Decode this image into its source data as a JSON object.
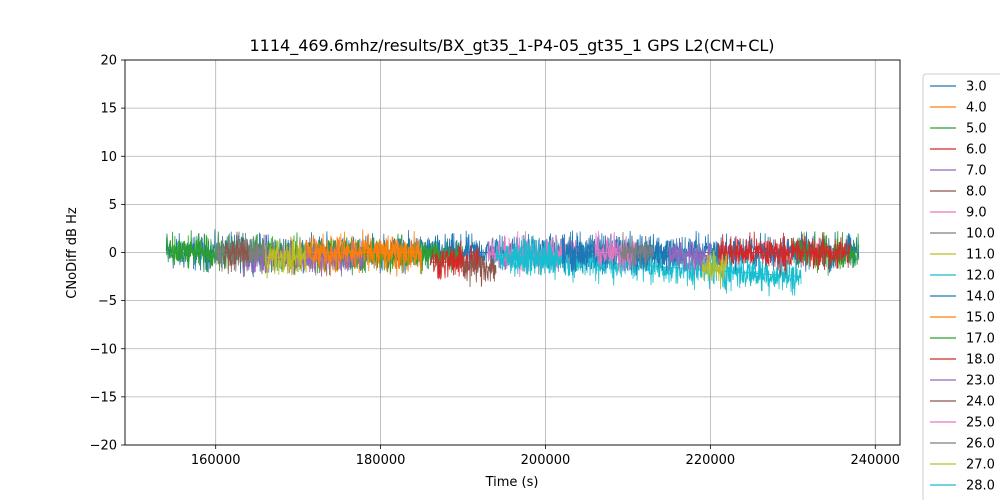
{
  "chart_data": {
    "type": "line",
    "title": "1114_469.6mhz/results/BX_gt35_1-P4-05_gt35_1 GPS L2(CM+CL)",
    "xlabel": "Time (s)",
    "ylabel": "CNoDiff dB Hz",
    "xlim": [
      149000,
      243000
    ],
    "ylim": [
      -20,
      20
    ],
    "xticks": [
      160000,
      180000,
      200000,
      220000,
      240000
    ],
    "yticks": [
      -20,
      -15,
      -10,
      -5,
      0,
      5,
      10,
      15,
      20
    ],
    "grid": true,
    "legend_position": "right",
    "series": [
      {
        "name": "3.0",
        "color": "#1f77b4",
        "x": [
          154000,
          238000
        ],
        "y": [
          0.0,
          0.0
        ]
      },
      {
        "name": "4.0",
        "color": "#ff7f0e",
        "x": [
          169000,
          185000
        ],
        "y": [
          -0.3,
          -0.3
        ]
      },
      {
        "name": "5.0",
        "color": "#2ca02c",
        "x": [
          154000,
          190000
        ],
        "y": [
          0.0,
          -0.3
        ]
      },
      {
        "name": "6.0",
        "color": "#d62728",
        "x": [
          186000,
          192000
        ],
        "y": [
          -1.0,
          -1.0
        ]
      },
      {
        "name": "7.0",
        "color": "#9467bd",
        "x": [
          163000,
          178000
        ],
        "y": [
          -0.5,
          -0.5
        ]
      },
      {
        "name": "8.0",
        "color": "#8c564b",
        "x": [
          190000,
          194000
        ],
        "y": [
          -1.5,
          -1.5
        ]
      },
      {
        "name": "9.0",
        "color": "#e377c2",
        "x": [
          193000,
          204000
        ],
        "y": [
          -0.2,
          -0.2
        ]
      },
      {
        "name": "10.0",
        "color": "#7f7f7f",
        "x": [
          160000,
          166000
        ],
        "y": [
          0.0,
          0.0
        ]
      },
      {
        "name": "11.0",
        "color": "#bcbd22",
        "x": [
          166000,
          171000
        ],
        "y": [
          -0.5,
          -0.5
        ]
      },
      {
        "name": "12.0",
        "color": "#17becf",
        "x": [
          194000,
          231000
        ],
        "y": [
          -0.3,
          -2.5
        ]
      },
      {
        "name": "14.0",
        "color": "#1f77b4",
        "x": [
          202000,
          216000
        ],
        "y": [
          0.0,
          0.0
        ]
      },
      {
        "name": "15.0",
        "color": "#ff7f0e",
        "x": [
          171000,
          185000
        ],
        "y": [
          0.0,
          0.0
        ]
      },
      {
        "name": "17.0",
        "color": "#2ca02c",
        "x": [
          230000,
          238000
        ],
        "y": [
          0.0,
          0.0
        ]
      },
      {
        "name": "18.0",
        "color": "#d62728",
        "x": [
          221000,
          237000
        ],
        "y": [
          0.0,
          0.0
        ]
      },
      {
        "name": "23.0",
        "color": "#9467bd",
        "x": [
          215000,
          220000
        ],
        "y": [
          -0.3,
          -0.3
        ]
      },
      {
        "name": "24.0",
        "color": "#8c564b",
        "x": [
          161000,
          164000
        ],
        "y": [
          0.0,
          0.0
        ]
      },
      {
        "name": "25.0",
        "color": "#e377c2",
        "x": [
          206000,
          211000
        ],
        "y": [
          0.0,
          0.0
        ]
      },
      {
        "name": "26.0",
        "color": "#7f7f7f",
        "x": [
          209000,
          213000
        ],
        "y": [
          0.0,
          0.0
        ]
      },
      {
        "name": "27.0",
        "color": "#bcbd22",
        "x": [
          219000,
          222000
        ],
        "y": [
          -1.5,
          -1.5
        ]
      },
      {
        "name": "28.0",
        "color": "#17becf",
        "x": [
          196000,
          201000
        ],
        "y": [
          -0.5,
          -0.5
        ]
      }
    ]
  }
}
